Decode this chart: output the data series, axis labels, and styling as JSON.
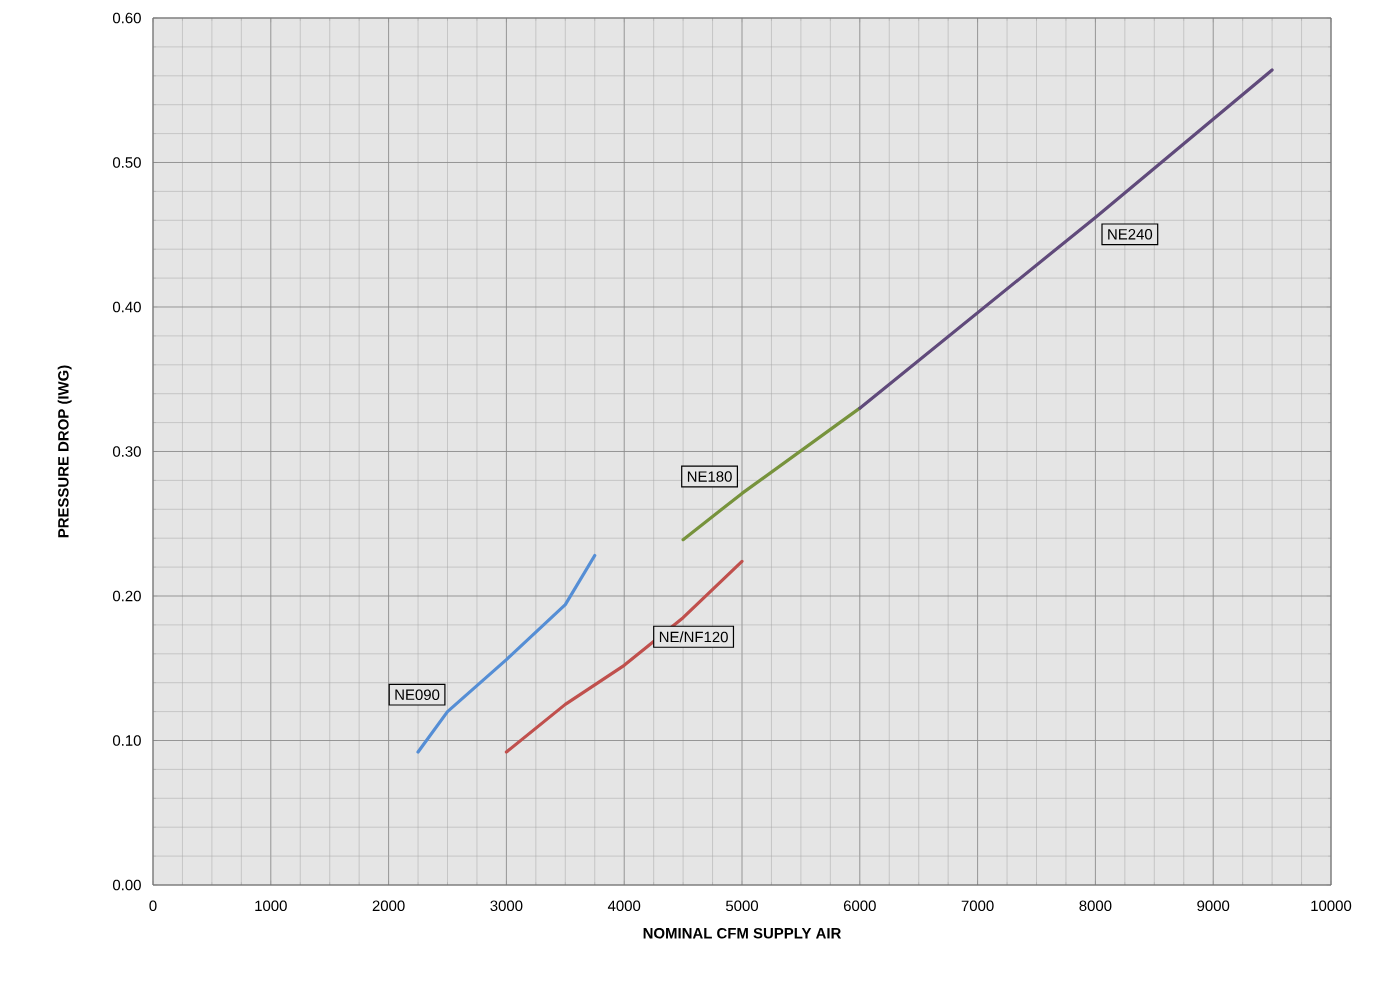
{
  "chart_data": {
    "type": "line",
    "xlabel": "NOMINAL CFM SUPPLY AIR",
    "ylabel": "PRESSURE DROP (IWG)",
    "xlim": [
      0,
      10000
    ],
    "ylim": [
      0,
      0.6
    ],
    "xticks": [
      0,
      1000,
      2000,
      3000,
      4000,
      5000,
      6000,
      7000,
      8000,
      9000,
      10000
    ],
    "yticks": [
      {
        "value": 0,
        "label": "0.00"
      },
      {
        "value": 0.1,
        "label": "0.10"
      },
      {
        "value": 0.2,
        "label": "0.20"
      },
      {
        "value": 0.3,
        "label": "0.30"
      },
      {
        "value": 0.4,
        "label": "0.40"
      },
      {
        "value": 0.5,
        "label": "0.50"
      },
      {
        "value": 0.6,
        "label": "0.60"
      }
    ],
    "grid": true,
    "marker": "none",
    "line_style": "solid",
    "series": [
      {
        "name": "NE090",
        "color": "#558ed5",
        "x": [
          2250,
          2500,
          3000,
          3500,
          3750
        ],
        "values": [
          0.092,
          0.12,
          0.156,
          0.194,
          0.228
        ]
      },
      {
        "name": "NE/NF120",
        "color": "#c0504d",
        "x": [
          3000,
          3500,
          4000,
          4500,
          5000
        ],
        "values": [
          0.092,
          0.125,
          0.152,
          0.185,
          0.224
        ]
      },
      {
        "name": "NE180",
        "color": "#77933c",
        "x": [
          4500,
          5000,
          6000
        ],
        "values": [
          0.239,
          0.271,
          0.33
        ]
      },
      {
        "name": "NE240",
        "color": "#604a7b",
        "x": [
          6000,
          7000,
          8000,
          9500
        ],
        "values": [
          0.33,
          0.396,
          0.462,
          0.564
        ]
      }
    ]
  }
}
